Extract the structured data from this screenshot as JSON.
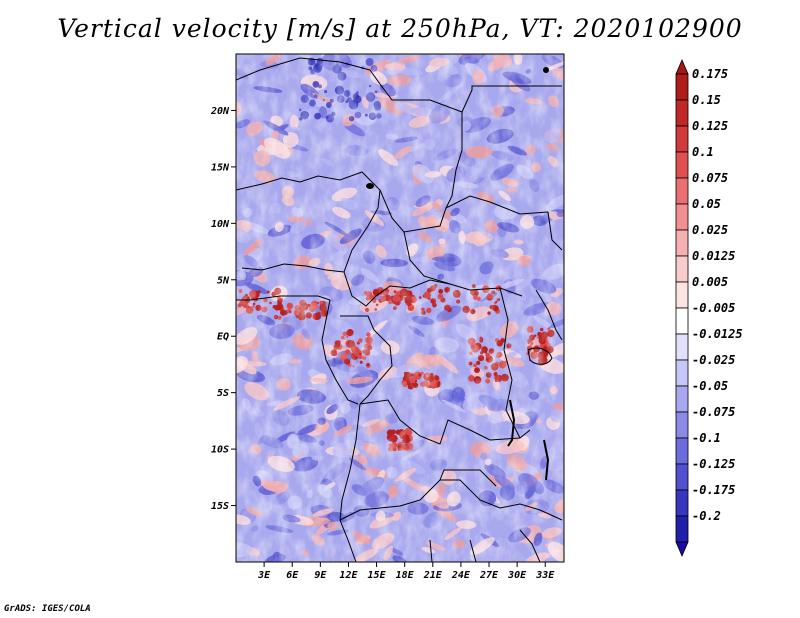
{
  "title": "Vertical velocity [m/s] at 250hPa, VT: 2020102900",
  "footer": "GrADS: IGES/COLA",
  "map": {
    "lon_range": [
      0,
      35
    ],
    "lat_range": [
      -20,
      25
    ],
    "lat_ticks": [
      {
        "value": 20,
        "label": "20N"
      },
      {
        "value": 15,
        "label": "15N"
      },
      {
        "value": 10,
        "label": "10N"
      },
      {
        "value": 5,
        "label": "5N"
      },
      {
        "value": 0,
        "label": "EQ"
      },
      {
        "value": -5,
        "label": "5S"
      },
      {
        "value": -10,
        "label": "10S"
      },
      {
        "value": -15,
        "label": "15S"
      }
    ],
    "lon_ticks": [
      {
        "value": 3,
        "label": "3E"
      },
      {
        "value": 6,
        "label": "6E"
      },
      {
        "value": 9,
        "label": "9E"
      },
      {
        "value": 12,
        "label": "12E"
      },
      {
        "value": 15,
        "label": "15E"
      },
      {
        "value": 18,
        "label": "18E"
      },
      {
        "value": 21,
        "label": "21E"
      },
      {
        "value": 24,
        "label": "24E"
      },
      {
        "value": 27,
        "label": "27E"
      },
      {
        "value": 30,
        "label": "30E"
      },
      {
        "value": 33,
        "label": "33E"
      }
    ]
  },
  "colorbar": {
    "levels": [
      {
        "label": "0.175",
        "color": "#b01c1c"
      },
      {
        "label": "0.15",
        "color": "#c02828"
      },
      {
        "label": "0.125",
        "color": "#d03a3a"
      },
      {
        "label": "0.1",
        "color": "#e05050"
      },
      {
        "label": "0.075",
        "color": "#e87070"
      },
      {
        "label": "0.05",
        "color": "#f09090"
      },
      {
        "label": "0.025",
        "color": "#f5b0b0"
      },
      {
        "label": "0.0125",
        "color": "#f9cccc"
      },
      {
        "label": "0.005",
        "color": "#fce4e4"
      },
      {
        "label": "-0.005",
        "color": "#ffffff"
      },
      {
        "label": "-0.0125",
        "color": "#e0e0fb"
      },
      {
        "label": "-0.025",
        "color": "#c6c6f7"
      },
      {
        "label": "-0.05",
        "color": "#a8a8f0"
      },
      {
        "label": "-0.075",
        "color": "#8a8ae8"
      },
      {
        "label": "-0.1",
        "color": "#6c6cde"
      },
      {
        "label": "-0.125",
        "color": "#5050d0"
      },
      {
        "label": "-0.175",
        "color": "#3636be"
      },
      {
        "label": "-0.2",
        "color": "#2020a8"
      }
    ],
    "top_arrow_color": "#a51818",
    "bottom_arrow_color": "#1a0aa0"
  }
}
